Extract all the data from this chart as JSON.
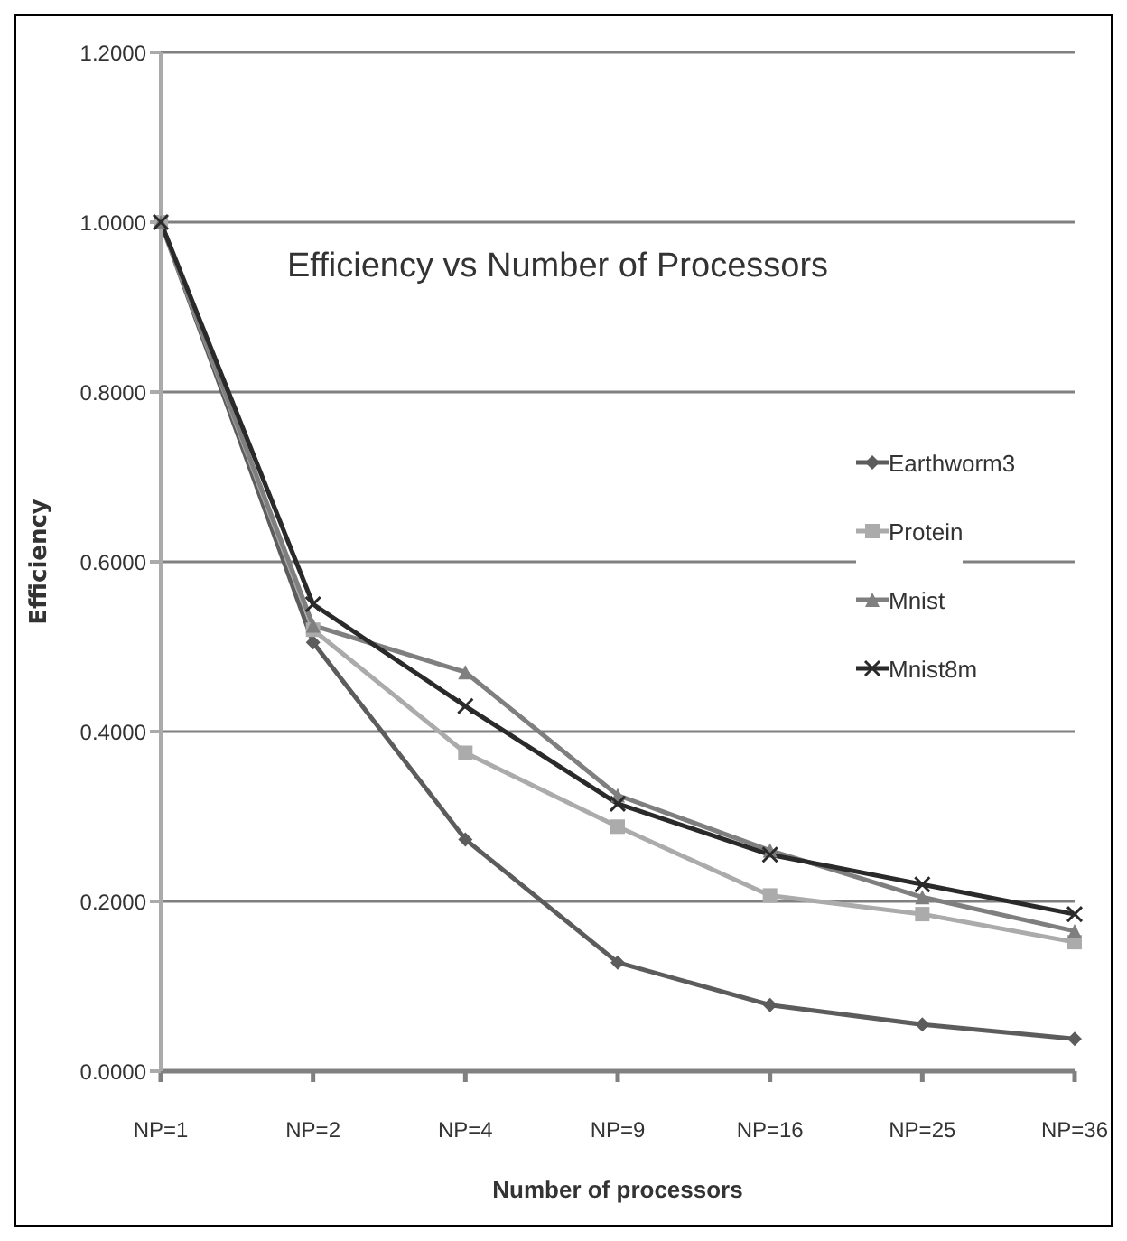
{
  "chart_data": {
    "type": "line",
    "title": "Efficiency vs Number of Processors",
    "xlabel": "Number of processors",
    "ylabel": "Efficiency",
    "categories": [
      "NP=1",
      "NP=2",
      "NP=4",
      "NP=9",
      "NP=16",
      "NP=25",
      "NP=36"
    ],
    "series": [
      {
        "name": "Earthworm3",
        "color": "#5c5c5c",
        "marker": "diamond",
        "values": [
          1.0,
          0.505,
          0.273,
          0.128,
          0.078,
          0.055,
          0.038
        ]
      },
      {
        "name": "Protein",
        "color": "#ababab",
        "marker": "square",
        "values": [
          1.0,
          0.52,
          0.375,
          0.288,
          0.207,
          0.185,
          0.152
        ]
      },
      {
        "name": "Mnist",
        "color": "#7f7f7f",
        "marker": "triangle",
        "values": [
          1.0,
          0.525,
          0.47,
          0.325,
          0.26,
          0.205,
          0.165
        ]
      },
      {
        "name": "Mnist8m",
        "color": "#2a2a2a",
        "marker": "cross",
        "values": [
          1.0,
          0.55,
          0.43,
          0.315,
          0.255,
          0.22,
          0.185
        ]
      }
    ],
    "ylim": [
      0,
      1.2
    ],
    "yticks": [
      {
        "value": 0,
        "label": "0.0000"
      },
      {
        "value": 0.2,
        "label": "0.2000"
      },
      {
        "value": 0.4,
        "label": "0.4000"
      },
      {
        "value": 0.6,
        "label": "0.6000"
      },
      {
        "value": 0.8,
        "label": "0.8000"
      },
      {
        "value": 1.0,
        "label": "1.0000"
      },
      {
        "value": 1.2,
        "label": "1.2000"
      }
    ],
    "grid": "y",
    "legend": "right"
  }
}
